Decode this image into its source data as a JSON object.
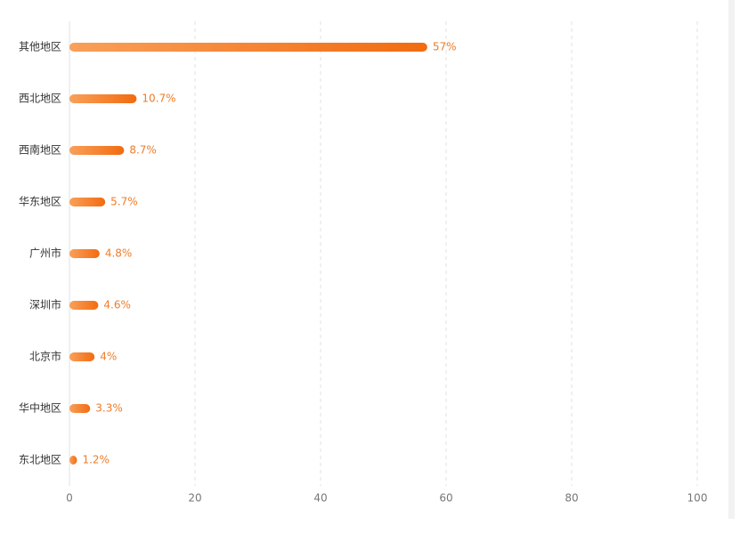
{
  "chart_data": {
    "type": "bar",
    "orientation": "horizontal",
    "categories": [
      "其他地区",
      "西北地区",
      "西南地区",
      "华东地区",
      "广州市",
      "深圳市",
      "北京市",
      "华中地区",
      "东北地区"
    ],
    "values": [
      57,
      10.7,
      8.7,
      5.7,
      4.8,
      4.6,
      4,
      3.3,
      1.2
    ],
    "value_labels": [
      "57%",
      "10.7%",
      "8.7%",
      "5.7%",
      "4.8%",
      "4.6%",
      "4%",
      "3.3%",
      "1.2%"
    ],
    "gradient": [
      "#f9a05a",
      "#f26b10"
    ],
    "xlim": [
      0,
      100
    ],
    "xticks": [
      0,
      20,
      40,
      60,
      80,
      100
    ],
    "grid": true
  }
}
